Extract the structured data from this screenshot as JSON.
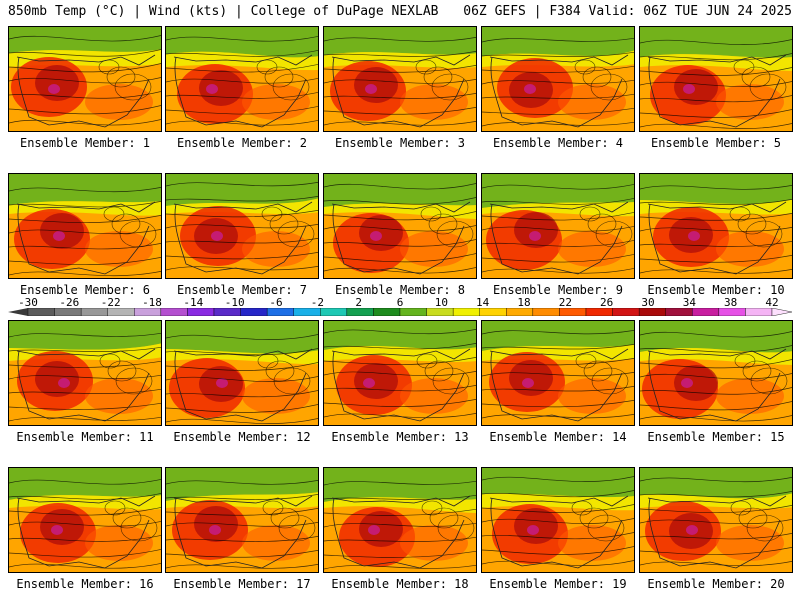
{
  "header": {
    "left": "850mb Temp (°C) | Wind (kts) | College of DuPage NEXLAB",
    "right": "06Z GEFS | F384 Valid: 06Z TUE JUN 24 2025"
  },
  "colorbar": {
    "ticks": [
      "-30",
      "-26",
      "-22",
      "-18",
      "-14",
      "-10",
      "-6",
      "-2",
      "2",
      "6",
      "10",
      "14",
      "18",
      "22",
      "26",
      "30",
      "34",
      "38",
      "42"
    ],
    "colors": [
      "#5c5c5c",
      "#7a7a7a",
      "#989898",
      "#b4b4b4",
      "#c9a0dc",
      "#b44fd0",
      "#8a2be2",
      "#5a2bc8",
      "#2626c8",
      "#1e6fe6",
      "#19b0e8",
      "#1ec8b4",
      "#14a050",
      "#1e8c1e",
      "#64b41e",
      "#c8dc1e",
      "#f0f000",
      "#ffd200",
      "#ffaa00",
      "#ff8c00",
      "#ff5a00",
      "#f02800",
      "#d21414",
      "#aa0a0a",
      "#a0103c",
      "#c81ea0",
      "#e650e6",
      "#f5b4f5"
    ]
  },
  "panels": [
    {
      "label": "Ensemble Member: 1"
    },
    {
      "label": "Ensemble Member: 2"
    },
    {
      "label": "Ensemble Member: 3"
    },
    {
      "label": "Ensemble Member: 4"
    },
    {
      "label": "Ensemble Member: 5"
    },
    {
      "label": "Ensemble Member: 6"
    },
    {
      "label": "Ensemble Member: 7"
    },
    {
      "label": "Ensemble Member: 8"
    },
    {
      "label": "Ensemble Member: 9"
    },
    {
      "label": "Ensemble Member: 10"
    },
    {
      "label": "Ensemble Member: 11"
    },
    {
      "label": "Ensemble Member: 12"
    },
    {
      "label": "Ensemble Member: 13"
    },
    {
      "label": "Ensemble Member: 14"
    },
    {
      "label": "Ensemble Member: 15"
    },
    {
      "label": "Ensemble Member: 16"
    },
    {
      "label": "Ensemble Member: 17"
    },
    {
      "label": "Ensemble Member: 18"
    },
    {
      "label": "Ensemble Member: 19"
    },
    {
      "label": "Ensemble Member: 20"
    }
  ]
}
